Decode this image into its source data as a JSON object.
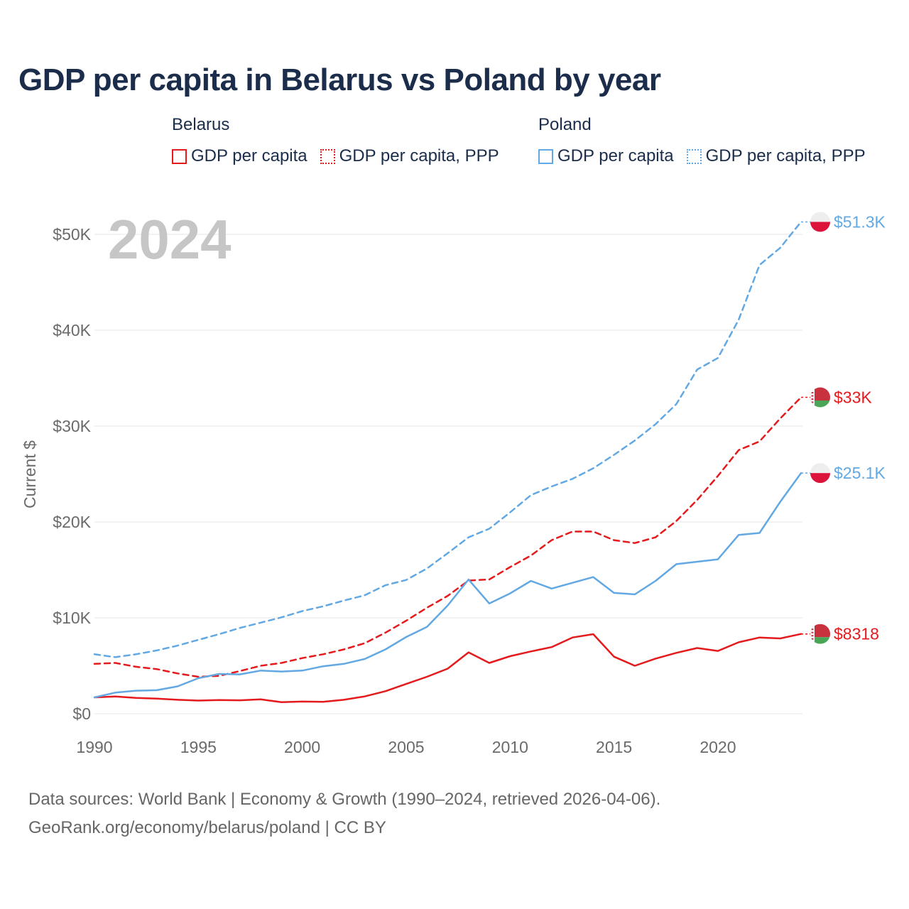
{
  "colors": {
    "belarus": "#e41a1c",
    "poland": "#62a8e3",
    "title": "#1b2d4a",
    "grid": "#e6e6e6",
    "axis_text": "#6a6a6a",
    "year_badge": "#c6c6c6"
  },
  "legend": {
    "groups": [
      {
        "country": "Belarus",
        "color": "#e41a1c",
        "items": [
          "GDP per capita",
          "GDP per capita, PPP"
        ]
      },
      {
        "country": "Poland",
        "color": "#62a8e3",
        "items": [
          "GDP per capita",
          "GDP per capita, PPP"
        ]
      }
    ]
  },
  "footer": {
    "line1": "Data sources: World Bank | Economy & Growth (1990–2024, retrieved 2026-04-06).",
    "line2": "GeoRank.org/economy/belarus/poland | CC BY"
  },
  "chart_data": {
    "type": "line",
    "title": "GDP per capita in Belarus vs Poland by year",
    "year_badge": "2024",
    "xlabel": "",
    "ylabel": "Current $",
    "xlim": [
      1990,
      2024
    ],
    "ylim": [
      0,
      50000
    ],
    "x_ticks": [
      1990,
      1995,
      2000,
      2005,
      2010,
      2015,
      2020
    ],
    "x_tick_labels": [
      "1990",
      "1995",
      "2000",
      "2005",
      "2010",
      "2015",
      "2020"
    ],
    "y_ticks": [
      0,
      10000,
      20000,
      30000,
      40000,
      50000
    ],
    "y_tick_labels": [
      "$0",
      "$10K",
      "$20K",
      "$30K",
      "$40K",
      "$50K"
    ],
    "grid": true,
    "x": [
      1990,
      1991,
      1992,
      1993,
      1994,
      1995,
      1996,
      1997,
      1998,
      1999,
      2000,
      2001,
      2002,
      2003,
      2004,
      2005,
      2006,
      2007,
      2008,
      2009,
      2010,
      2011,
      2012,
      2013,
      2014,
      2015,
      2016,
      2017,
      2018,
      2019,
      2020,
      2021,
      2022,
      2023,
      2024
    ],
    "series": [
      {
        "name": "Belarus — GDP per capita",
        "country": "Belarus",
        "flag": "belarus",
        "dashed": false,
        "color": "#e41a1c",
        "end_label": "$8318",
        "values": [
          1700,
          1800,
          1650,
          1580,
          1450,
          1370,
          1420,
          1400,
          1500,
          1200,
          1270,
          1240,
          1450,
          1800,
          2350,
          3100,
          3850,
          4700,
          6400,
          5300,
          6000,
          6500,
          6950,
          7950,
          8300,
          5950,
          5000,
          5750,
          6350,
          6850,
          6550,
          7450,
          7950,
          7850,
          8318
        ]
      },
      {
        "name": "Belarus — GDP per capita, PPP",
        "country": "Belarus",
        "flag": "belarus",
        "dashed": true,
        "color": "#e41a1c",
        "end_label": "$33K",
        "values": [
          5200,
          5300,
          4900,
          4650,
          4200,
          3850,
          3950,
          4450,
          5000,
          5300,
          5800,
          6200,
          6700,
          7350,
          8450,
          9700,
          11050,
          12300,
          13900,
          14000,
          15300,
          16500,
          18100,
          19000,
          19000,
          18100,
          17800,
          18400,
          20100,
          22300,
          24800,
          27500,
          28400,
          30800,
          33000
        ]
      },
      {
        "name": "Poland — GDP per capita",
        "country": "Poland",
        "flag": "poland",
        "dashed": false,
        "color": "#62a8e3",
        "end_label": "$25.1K",
        "values": [
          1700,
          2200,
          2400,
          2450,
          2850,
          3700,
          4150,
          4100,
          4500,
          4400,
          4500,
          4950,
          5200,
          5700,
          6700,
          8000,
          9050,
          11300,
          14000,
          11500,
          12550,
          13850,
          13050,
          13650,
          14250,
          12600,
          12450,
          13850,
          15600,
          15850,
          16100,
          18650,
          18850,
          22100,
          25100
        ]
      },
      {
        "name": "Poland — GDP per capita, PPP",
        "country": "Poland",
        "flag": "poland",
        "dashed": true,
        "color": "#62a8e3",
        "end_label": "$51.3K",
        "values": [
          6200,
          5900,
          6200,
          6600,
          7100,
          7700,
          8300,
          8950,
          9500,
          10050,
          10700,
          11200,
          11800,
          12350,
          13400,
          13950,
          15150,
          16750,
          18400,
          19300,
          21000,
          22800,
          23700,
          24500,
          25600,
          27000,
          28500,
          30200,
          32300,
          35900,
          37100,
          41100,
          46800,
          48600,
          51300
        ]
      }
    ]
  }
}
